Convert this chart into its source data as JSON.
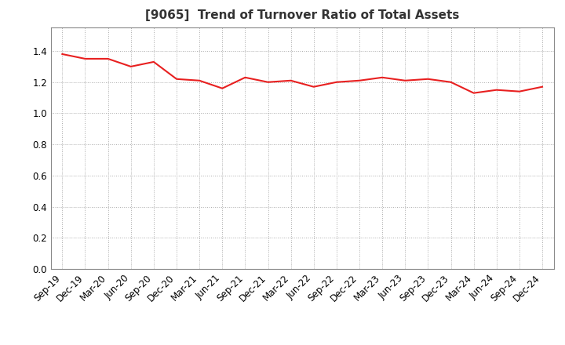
{
  "title": "[9065]  Trend of Turnover Ratio of Total Assets",
  "labels": [
    "Sep-19",
    "Dec-19",
    "Mar-20",
    "Jun-20",
    "Sep-20",
    "Dec-20",
    "Mar-21",
    "Jun-21",
    "Sep-21",
    "Dec-21",
    "Mar-22",
    "Jun-22",
    "Sep-22",
    "Dec-22",
    "Mar-23",
    "Jun-23",
    "Sep-23",
    "Dec-23",
    "Mar-24",
    "Jun-24",
    "Sep-24",
    "Dec-24"
  ],
  "values": [
    1.38,
    1.35,
    1.35,
    1.3,
    1.33,
    1.22,
    1.21,
    1.16,
    1.23,
    1.2,
    1.21,
    1.17,
    1.2,
    1.21,
    1.23,
    1.21,
    1.22,
    1.2,
    1.13,
    1.15,
    1.14,
    1.17
  ],
  "line_color": "#e82020",
  "line_width": 1.5,
  "ylim": [
    0.0,
    1.55
  ],
  "yticks": [
    0.0,
    0.2,
    0.4,
    0.6,
    0.8,
    1.0,
    1.2,
    1.4
  ],
  "grid_color": "#aaaaaa",
  "bg_color": "#ffffff",
  "plot_bg_color": "#ffffff",
  "title_fontsize": 11,
  "tick_fontsize": 8.5
}
